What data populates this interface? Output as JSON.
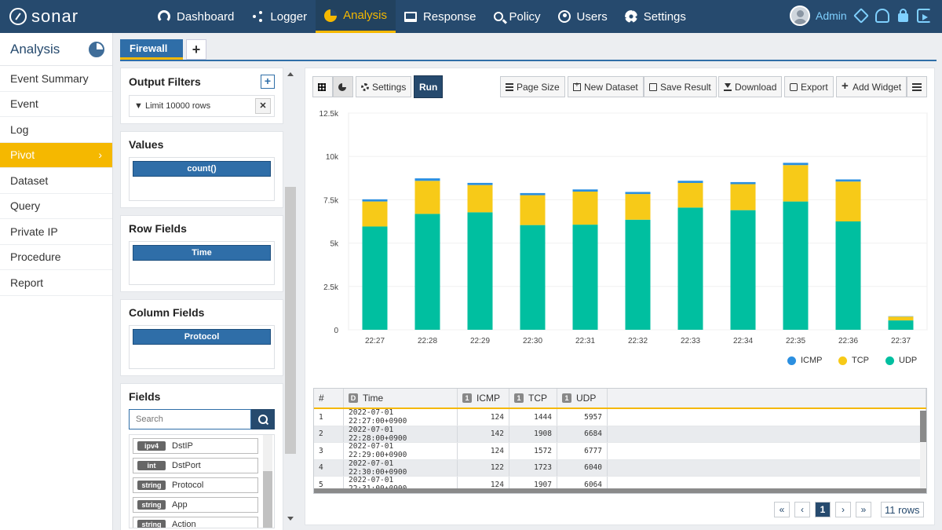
{
  "app": {
    "logo_text": "sonar"
  },
  "nav": [
    {
      "label": "Dashboard",
      "icon": "dashboard-icon"
    },
    {
      "label": "Logger",
      "icon": "share-icon"
    },
    {
      "label": "Analysis",
      "icon": "pie-chart-icon",
      "active": true
    },
    {
      "label": "Response",
      "icon": "monitor-icon"
    },
    {
      "label": "Policy",
      "icon": "search-icon"
    },
    {
      "label": "Users",
      "icon": "user-circle-icon"
    },
    {
      "label": "Settings",
      "icon": "gear-icon"
    }
  ],
  "user": {
    "name": "Admin"
  },
  "sidebar": {
    "title": "Analysis",
    "items": [
      {
        "label": "Event Summary"
      },
      {
        "label": "Event"
      },
      {
        "label": "Log"
      },
      {
        "label": "Pivot",
        "active": true
      },
      {
        "label": "Dataset"
      },
      {
        "label": "Query"
      },
      {
        "label": "Private IP"
      },
      {
        "label": "Procedure"
      },
      {
        "label": "Report"
      }
    ]
  },
  "tabs": {
    "active_label": "Firewall",
    "add_label": "+"
  },
  "filters": {
    "title": "Output Filters",
    "items": [
      {
        "label": "Limit 10000 rows"
      }
    ]
  },
  "values": {
    "title": "Values",
    "chips": [
      "count()"
    ]
  },
  "row_fields": {
    "title": "Row Fields",
    "chips": [
      "Time"
    ]
  },
  "column_fields": {
    "title": "Column Fields",
    "chips": [
      "Protocol"
    ]
  },
  "fields": {
    "title": "Fields",
    "search_placeholder": "Search",
    "items": [
      {
        "type": "ipv4",
        "name": "DstIP"
      },
      {
        "type": "int",
        "name": "DstPort"
      },
      {
        "type": "string",
        "name": "Protocol"
      },
      {
        "type": "string",
        "name": "App"
      },
      {
        "type": "string",
        "name": "Action"
      }
    ]
  },
  "toolbar": {
    "settings": "Settings",
    "run": "Run",
    "page_size": "Page Size",
    "new_dataset": "New Dataset",
    "save_result": "Save Result",
    "download": "Download",
    "export": "Export",
    "add_widget": "Add Widget"
  },
  "colors": {
    "ICMP": "#2b8fe0",
    "TCP": "#f7ca18",
    "UDP": "#00bfa0"
  },
  "chart_data": {
    "type": "bar",
    "stacked": true,
    "categories": [
      "22:27",
      "22:28",
      "22:29",
      "22:30",
      "22:31",
      "22:32",
      "22:33",
      "22:34",
      "22:35",
      "22:36",
      "22:37"
    ],
    "series": [
      {
        "name": "ICMP",
        "values": [
          124,
          142,
          124,
          122,
          124,
          120,
          125,
          118,
          130,
          123,
          20
        ]
      },
      {
        "name": "TCP",
        "values": [
          1444,
          1908,
          1572,
          1723,
          1907,
          1480,
          1420,
          1500,
          2100,
          2300,
          220
        ]
      },
      {
        "name": "UDP",
        "values": [
          5957,
          6684,
          6777,
          6040,
          6064,
          6350,
          7050,
          6900,
          7400,
          6250,
          540
        ]
      }
    ],
    "ylim": [
      0,
      12500
    ],
    "yticks": [
      "0",
      "2.5k",
      "5k",
      "7.5k",
      "10k",
      "12.5k"
    ],
    "legend_position": "bottom-right"
  },
  "table": {
    "columns": [
      "#",
      "Time",
      "ICMP",
      "TCP",
      "UDP"
    ],
    "badges": [
      "",
      "D",
      "1",
      "1",
      "1"
    ],
    "rows": [
      [
        "1",
        "2022-07-01 22:27:00+0900",
        "124",
        "1444",
        "5957"
      ],
      [
        "2",
        "2022-07-01 22:28:00+0900",
        "142",
        "1908",
        "6684"
      ],
      [
        "3",
        "2022-07-01 22:29:00+0900",
        "124",
        "1572",
        "6777"
      ],
      [
        "4",
        "2022-07-01 22:30:00+0900",
        "122",
        "1723",
        "6040"
      ],
      [
        "5",
        "2022-07-01 22:31:00+0900",
        "124",
        "1907",
        "6064"
      ]
    ]
  },
  "pager": {
    "first": "«",
    "prev": "‹",
    "current": "1",
    "next": "›",
    "last": "»",
    "rows_label": "11 rows"
  }
}
